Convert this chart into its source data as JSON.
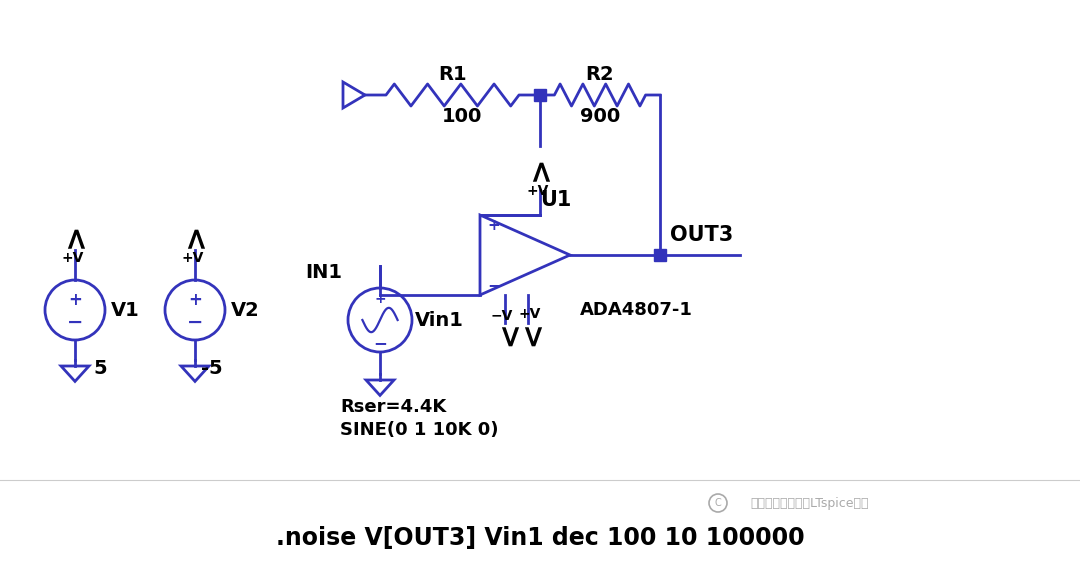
{
  "bg_color": "#ffffff",
  "cc": "#3333bb",
  "bk": "#000000",
  "bottom_text": ".noise V[OUT3] Vin1 dec 100 10 100000",
  "watermark": "放大器参数解析与LTspice仿真",
  "r1_label": "R1",
  "r1_val": "100",
  "r2_label": "R2",
  "r2_val": "900",
  "v1_label": "V1",
  "v1_val": "5",
  "v2_label": "V2",
  "v2_val": "-5",
  "vin1_label": "Vin1",
  "in1_label": "IN1",
  "out3_label": "OUT3",
  "u1_label": "U1",
  "chip_label": "ADA4807-1",
  "rser_label": "Rser=4.4K",
  "sine_label": "SINE(0 1 10K 0)"
}
